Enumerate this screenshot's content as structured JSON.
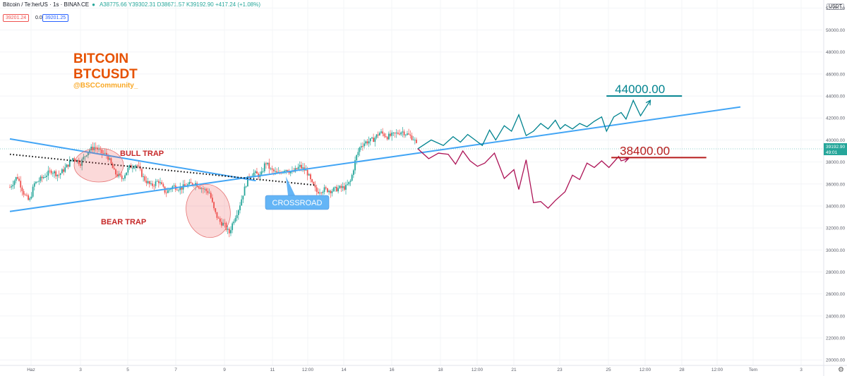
{
  "header": {
    "symbol": "Bitcoin / TetherUS · 1s · BINANCE",
    "ohlc": "A38775.66 Y39302.31 D38671.57 K39192.90 +417.24 (+1.08%)",
    "sell_price": "39201.24",
    "spread": "0.01",
    "buy_price": "39201.25",
    "currency_badge": "USDT"
  },
  "last_price": {
    "value": "39192.90",
    "countdown": "49:01",
    "color": "#26a69a"
  },
  "chart_data": {
    "type": "candlestick",
    "symbol": "BTCUSDT",
    "exchange": "BINANCE",
    "ylim": [
      19500,
      52600
    ],
    "y_ticks": [
      20000,
      22000,
      24000,
      26000,
      28000,
      30000,
      32000,
      34000,
      36000,
      38000,
      40000,
      42000,
      44000,
      46000,
      48000,
      50000,
      52000
    ],
    "x_ticks": [
      "Haz",
      "3",
      "5",
      "7",
      "9",
      "11",
      "12:00",
      "14",
      "16",
      "18",
      "12:00",
      "21",
      "23",
      "25",
      "12:00",
      "28",
      "12:00",
      "Tem",
      "3"
    ],
    "price_path": [
      {
        "t": 0.0,
        "p": 35700
      },
      {
        "t": 0.3,
        "p": 36700
      },
      {
        "t": 0.6,
        "p": 35000
      },
      {
        "t": 0.8,
        "p": 34400
      },
      {
        "t": 1.0,
        "p": 36000
      },
      {
        "t": 1.3,
        "p": 36500
      },
      {
        "t": 1.7,
        "p": 37200
      },
      {
        "t": 2.0,
        "p": 36800
      },
      {
        "t": 2.3,
        "p": 37500
      },
      {
        "t": 2.6,
        "p": 38400
      },
      {
        "t": 2.9,
        "p": 37900
      },
      {
        "t": 3.2,
        "p": 39000
      },
      {
        "t": 3.5,
        "p": 39400
      },
      {
        "t": 3.7,
        "p": 38900
      },
      {
        "t": 4.0,
        "p": 38600
      },
      {
        "t": 4.3,
        "p": 37000
      },
      {
        "t": 4.6,
        "p": 36500
      },
      {
        "t": 4.9,
        "p": 37500
      },
      {
        "t": 5.2,
        "p": 37800
      },
      {
        "t": 5.5,
        "p": 36500
      },
      {
        "t": 5.8,
        "p": 35800
      },
      {
        "t": 6.1,
        "p": 36300
      },
      {
        "t": 6.4,
        "p": 35200
      },
      {
        "t": 6.7,
        "p": 35800
      },
      {
        "t": 7.0,
        "p": 35600
      },
      {
        "t": 7.3,
        "p": 35900
      },
      {
        "t": 7.6,
        "p": 36100
      },
      {
        "t": 7.9,
        "p": 35600
      },
      {
        "t": 8.2,
        "p": 35200
      },
      {
        "t": 8.4,
        "p": 33500
      },
      {
        "t": 8.6,
        "p": 32600
      },
      {
        "t": 8.8,
        "p": 32300
      },
      {
        "t": 9.0,
        "p": 31500
      },
      {
        "t": 9.2,
        "p": 32800
      },
      {
        "t": 9.4,
        "p": 33800
      },
      {
        "t": 9.6,
        "p": 35300
      },
      {
        "t": 9.8,
        "p": 36700
      },
      {
        "t": 10.0,
        "p": 37000
      },
      {
        "t": 10.3,
        "p": 36700
      },
      {
        "t": 10.5,
        "p": 38000
      },
      {
        "t": 10.7,
        "p": 37300
      },
      {
        "t": 11.0,
        "p": 36900
      },
      {
        "t": 11.3,
        "p": 37400
      },
      {
        "t": 11.6,
        "p": 37000
      },
      {
        "t": 11.9,
        "p": 37600
      },
      {
        "t": 12.2,
        "p": 37100
      },
      {
        "t": 12.4,
        "p": 36000
      },
      {
        "t": 12.6,
        "p": 35300
      },
      {
        "t": 12.9,
        "p": 35500
      },
      {
        "t": 13.2,
        "p": 35400
      },
      {
        "t": 13.5,
        "p": 35600
      },
      {
        "t": 13.8,
        "p": 35700
      },
      {
        "t": 14.0,
        "p": 36300
      },
      {
        "t": 14.2,
        "p": 38300
      },
      {
        "t": 14.4,
        "p": 39500
      },
      {
        "t": 14.6,
        "p": 39800
      },
      {
        "t": 14.9,
        "p": 40000
      },
      {
        "t": 15.2,
        "p": 40700
      },
      {
        "t": 15.5,
        "p": 40300
      },
      {
        "t": 15.8,
        "p": 40500
      },
      {
        "t": 16.1,
        "p": 40800
      },
      {
        "t": 16.4,
        "p": 40400
      },
      {
        "t": 16.6,
        "p": 40100
      },
      {
        "t": 16.75,
        "p": 39200
      }
    ],
    "trend_line_a": {
      "from": {
        "t": 0.0,
        "p": 40100
      },
      "to": {
        "t": 10.1,
        "p": 36300
      },
      "color": "#42a5f5"
    },
    "trend_line_b": {
      "from": {
        "t": 0.0,
        "p": 33500
      },
      "to": {
        "t": 30.0,
        "p": 43000
      },
      "color": "#42a5f5"
    },
    "dotted_line": {
      "from": {
        "t": 0.0,
        "p": 38700
      },
      "to": {
        "t": 12.5,
        "p": 35900
      },
      "color": "#000000"
    },
    "target_high": {
      "value": 44000.0,
      "label": "44000.00",
      "from_t": 24.5,
      "to_t": 27.6,
      "color": "#00838f"
    },
    "target_low": {
      "value": 38400.0,
      "label": "38400.00",
      "from_t": 24.7,
      "to_t": 28.6,
      "color": "#b71c1c"
    },
    "bull_path": [
      {
        "t": 16.75,
        "p": 39200
      },
      {
        "t": 17.3,
        "p": 40000
      },
      {
        "t": 17.8,
        "p": 39500
      },
      {
        "t": 18.2,
        "p": 40300
      },
      {
        "t": 18.5,
        "p": 39800
      },
      {
        "t": 18.8,
        "p": 40500
      },
      {
        "t": 19.1,
        "p": 40000
      },
      {
        "t": 19.4,
        "p": 39500
      },
      {
        "t": 19.7,
        "p": 40900
      },
      {
        "t": 19.95,
        "p": 40000
      },
      {
        "t": 20.3,
        "p": 41300
      },
      {
        "t": 20.6,
        "p": 40800
      },
      {
        "t": 20.9,
        "p": 42300
      },
      {
        "t": 21.2,
        "p": 40400
      },
      {
        "t": 21.5,
        "p": 40800
      },
      {
        "t": 21.8,
        "p": 41500
      },
      {
        "t": 22.1,
        "p": 41000
      },
      {
        "t": 22.4,
        "p": 41800
      },
      {
        "t": 22.6,
        "p": 41000
      },
      {
        "t": 22.8,
        "p": 41400
      },
      {
        "t": 23.1,
        "p": 41000
      },
      {
        "t": 23.4,
        "p": 41500
      },
      {
        "t": 23.7,
        "p": 41200
      },
      {
        "t": 24.0,
        "p": 41700
      },
      {
        "t": 24.3,
        "p": 42100
      },
      {
        "t": 24.5,
        "p": 40800
      },
      {
        "t": 24.8,
        "p": 42100
      },
      {
        "t": 25.1,
        "p": 42500
      },
      {
        "t": 25.3,
        "p": 41900
      },
      {
        "t": 25.6,
        "p": 43600
      },
      {
        "t": 25.9,
        "p": 42200
      },
      {
        "t": 26.3,
        "p": 43600
      }
    ],
    "bear_path": [
      {
        "t": 16.75,
        "p": 39200
      },
      {
        "t": 17.2,
        "p": 38300
      },
      {
        "t": 17.6,
        "p": 38800
      },
      {
        "t": 18.0,
        "p": 38700
      },
      {
        "t": 18.3,
        "p": 37800
      },
      {
        "t": 18.6,
        "p": 39000
      },
      {
        "t": 18.9,
        "p": 38100
      },
      {
        "t": 19.2,
        "p": 37600
      },
      {
        "t": 19.5,
        "p": 37900
      },
      {
        "t": 19.9,
        "p": 38800
      },
      {
        "t": 20.3,
        "p": 36500
      },
      {
        "t": 20.7,
        "p": 37300
      },
      {
        "t": 20.9,
        "p": 35500
      },
      {
        "t": 21.2,
        "p": 38200
      },
      {
        "t": 21.5,
        "p": 34300
      },
      {
        "t": 21.8,
        "p": 34400
      },
      {
        "t": 22.1,
        "p": 33800
      },
      {
        "t": 22.4,
        "p": 34500
      },
      {
        "t": 22.8,
        "p": 35300
      },
      {
        "t": 23.1,
        "p": 36800
      },
      {
        "t": 23.4,
        "p": 36400
      },
      {
        "t": 23.7,
        "p": 37900
      },
      {
        "t": 24.0,
        "p": 37500
      },
      {
        "t": 24.3,
        "p": 38100
      },
      {
        "t": 24.6,
        "p": 37500
      },
      {
        "t": 25.0,
        "p": 38500
      },
      {
        "t": 25.1,
        "p": 38100
      },
      {
        "t": 25.4,
        "p": 38300
      }
    ],
    "annotations": [
      {
        "id": "title",
        "text": "BITCOIN",
        "color": "#e65100"
      },
      {
        "id": "ticker",
        "text": "BTCUSDT",
        "color": "#e65100"
      },
      {
        "id": "handle",
        "text": "@BSCCommunity_",
        "color": "#f9a825"
      },
      {
        "id": "bull_trap",
        "text": "BULL TRAP",
        "color": "#c62828"
      },
      {
        "id": "bear_trap",
        "text": "BEAR TRAP",
        "color": "#c62828"
      },
      {
        "id": "crossroad",
        "text": "CROSSROAD",
        "color": "#ffffff",
        "background": "#64b5f6"
      }
    ]
  }
}
